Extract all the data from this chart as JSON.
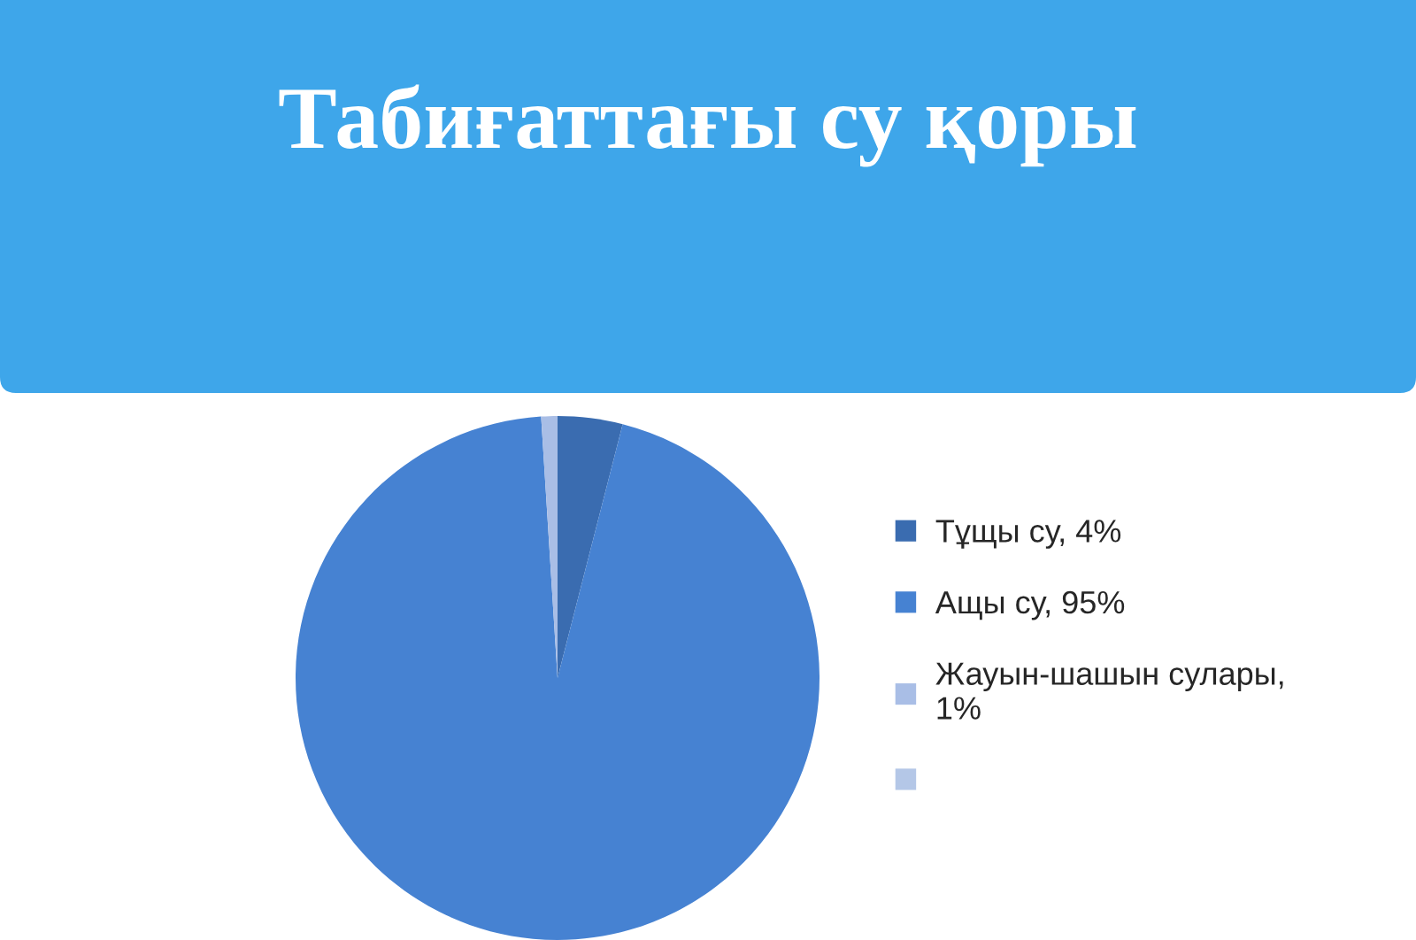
{
  "chart_data": {
    "type": "pie",
    "title": "Табиғаттағы су қоры",
    "categories": [
      "Тұщы су, 4%",
      "Ащы су, 95%",
      "Жауын-шашын сулары, 1%",
      null
    ],
    "values": [
      4,
      95,
      1,
      null
    ],
    "colors": [
      "#3a6cb0",
      "#4682d2",
      "#a9bee6",
      "#b4c7e7"
    ],
    "legend": "right"
  }
}
